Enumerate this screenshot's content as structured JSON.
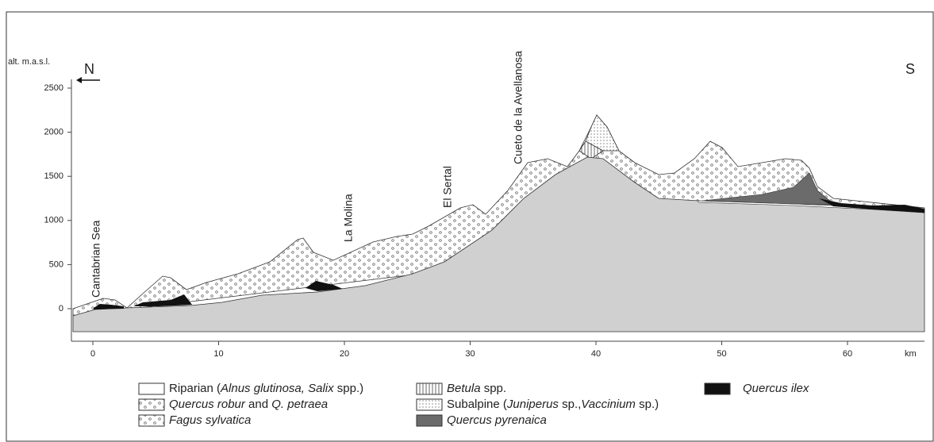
{
  "axes": {
    "y_label": "alt. m.a.s.l.",
    "ylim": [
      -260,
      3020
    ],
    "yticks": [
      0,
      500,
      1000,
      1500,
      2000,
      2500
    ],
    "xlim": [
      -1.7,
      66.2
    ],
    "xticks": [
      0,
      10,
      20,
      30,
      40,
      50,
      60
    ],
    "x_unit": "km"
  },
  "orientation": {
    "north": "N",
    "south": "S"
  },
  "places": [
    "Cantabrian Sea",
    "La Molina",
    "El Sertal",
    "Cueto de la Avellanosa"
  ],
  "legend": [
    {
      "parts": [
        "Riparian (",
        "Alnus glutinosa, Salix",
        " spp.)"
      ]
    },
    {
      "parts": [
        "Quercus robur",
        " and ",
        "Q. petraea"
      ]
    },
    {
      "parts": [
        "Fagus sylvatica"
      ]
    },
    {
      "parts": [
        "Betula",
        " spp."
      ]
    },
    {
      "parts": [
        "Subalpine (",
        "Juniperus",
        " sp.,",
        "Vaccinium",
        " sp.)"
      ]
    },
    {
      "parts": [
        "Quercus pyrenaica"
      ]
    },
    {
      "parts": [
        "Quercus ilex"
      ]
    }
  ]
}
